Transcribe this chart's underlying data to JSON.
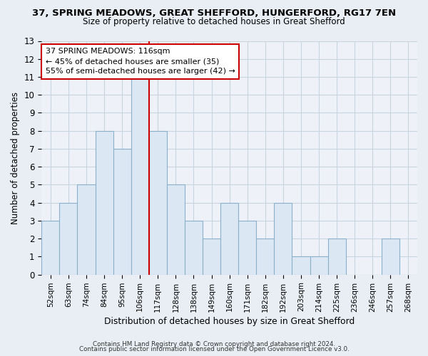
{
  "title": "37, SPRING MEADOWS, GREAT SHEFFORD, HUNGERFORD, RG17 7EN",
  "subtitle": "Size of property relative to detached houses in Great Shefford",
  "xlabel": "Distribution of detached houses by size in Great Shefford",
  "ylabel": "Number of detached properties",
  "bar_labels": [
    "52sqm",
    "63sqm",
    "74sqm",
    "84sqm",
    "95sqm",
    "106sqm",
    "117sqm",
    "128sqm",
    "138sqm",
    "149sqm",
    "160sqm",
    "171sqm",
    "182sqm",
    "192sqm",
    "203sqm",
    "214sqm",
    "225sqm",
    "236sqm",
    "246sqm",
    "257sqm",
    "268sqm"
  ],
  "bar_values": [
    3,
    4,
    5,
    8,
    7,
    11,
    8,
    5,
    3,
    2,
    4,
    3,
    2,
    4,
    1,
    1,
    2,
    0,
    0,
    2,
    0
  ],
  "highlight_index": 5,
  "highlight_color": "#cc0000",
  "bar_color": "#dbe8f4",
  "bar_edge_color": "#8ab0cc",
  "annotation_text": "37 SPRING MEADOWS: 116sqm\n← 45% of detached houses are smaller (35)\n55% of semi-detached houses are larger (42) →",
  "annotation_border_color": "#cc0000",
  "ylim": [
    0,
    13
  ],
  "yticks": [
    0,
    1,
    2,
    3,
    4,
    5,
    6,
    7,
    8,
    9,
    10,
    11,
    12,
    13
  ],
  "footer1": "Contains HM Land Registry data © Crown copyright and database right 2024.",
  "footer2": "Contains public sector information licensed under the Open Government Licence v3.0.",
  "bg_color": "#e8eef4",
  "plot_bg_color": "#eef2f8",
  "grid_color": "#c8d4e0",
  "title_fontsize": 9.5,
  "subtitle_fontsize": 8.5
}
